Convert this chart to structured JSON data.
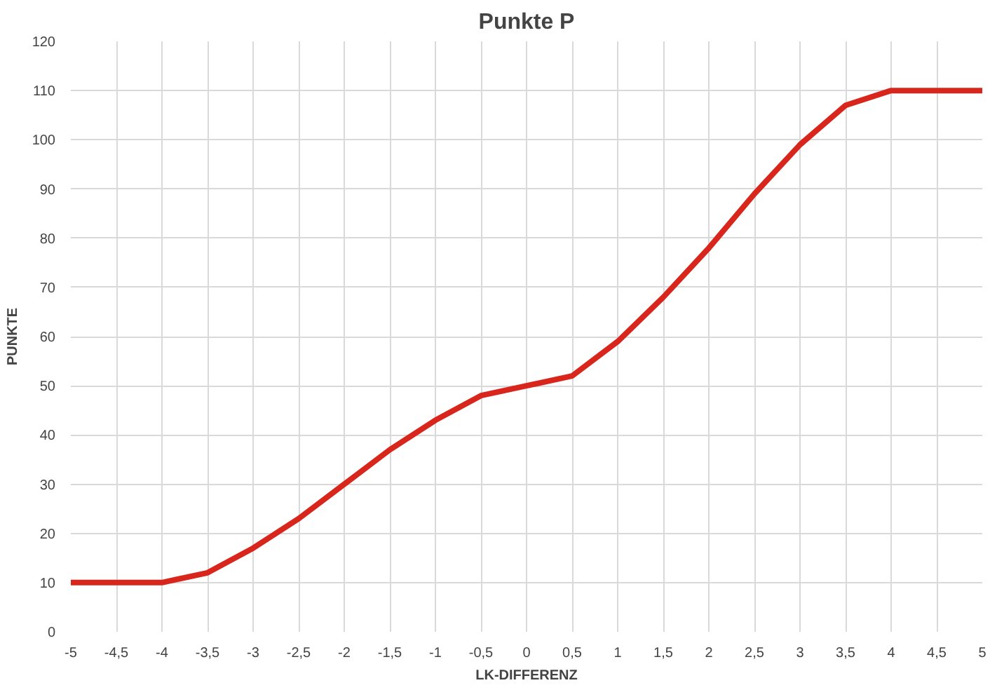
{
  "chart_data": {
    "type": "line",
    "title": "Punkte P",
    "xlabel": "LK-DIFFERENZ",
    "ylabel": "PUNKTE",
    "x": [
      -5,
      -4.5,
      -4,
      -3.5,
      -3,
      -2.5,
      -2,
      -1.5,
      -1,
      -0.5,
      0,
      0.5,
      1,
      1.5,
      2,
      2.5,
      3,
      3.5,
      4,
      4.5,
      5
    ],
    "series": [
      {
        "color": "#d9261c",
        "values": [
          10,
          10,
          10,
          12,
          17,
          23,
          30,
          37,
          43,
          48,
          50,
          52,
          59,
          68,
          78,
          89,
          99,
          107,
          110,
          110,
          110
        ]
      }
    ],
    "xlim": [
      -5,
      5
    ],
    "ylim": [
      0,
      120
    ],
    "xticks": [
      -5,
      {
        "value": -4.5,
        "label": "-4,5"
      },
      -4,
      {
        "value": -3.5,
        "label": "-3,5"
      },
      -3,
      {
        "value": -2.5,
        "label": "-2,5"
      },
      -2,
      {
        "value": -1.5,
        "label": "-1,5"
      },
      -1,
      {
        "value": -0.5,
        "label": "-0,5"
      },
      0,
      {
        "value": 0.5,
        "label": "0,5"
      },
      1,
      {
        "value": 1.5,
        "label": "1,5"
      },
      2,
      {
        "value": 2.5,
        "label": "2,5"
      },
      3,
      {
        "value": 3.5,
        "label": "3,5"
      },
      4,
      {
        "value": 4.5,
        "label": "4,5"
      },
      5
    ],
    "yticks": [
      0,
      10,
      20,
      30,
      40,
      50,
      60,
      70,
      80,
      90,
      100,
      110,
      120
    ],
    "grid": true,
    "marker": "none",
    "line_style": "solid"
  }
}
